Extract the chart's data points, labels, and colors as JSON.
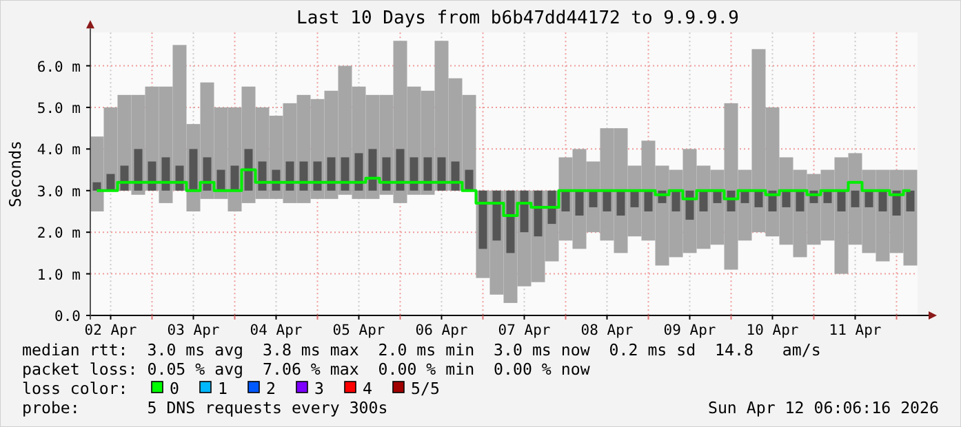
{
  "chart_data": {
    "type": "bar",
    "title": "Last 10 Days from b6b47dd44172 to 9.9.9.9",
    "ylabel": "Seconds",
    "x": [
      "2026-04-02T08:00",
      "2026-04-02T12:00",
      "2026-04-02T16:00",
      "2026-04-02T20:00",
      "2026-04-03T00:00",
      "2026-04-03T04:00",
      "2026-04-03T08:00",
      "2026-04-03T12:00",
      "2026-04-03T16:00",
      "2026-04-03T20:00",
      "2026-04-04T00:00",
      "2026-04-04T04:00",
      "2026-04-04T08:00",
      "2026-04-04T12:00",
      "2026-04-04T16:00",
      "2026-04-04T20:00",
      "2026-04-05T00:00",
      "2026-04-05T04:00",
      "2026-04-05T08:00",
      "2026-04-05T12:00",
      "2026-04-05T16:00",
      "2026-04-05T20:00",
      "2026-04-06T00:00",
      "2026-04-06T04:00",
      "2026-04-06T08:00",
      "2026-04-06T12:00",
      "2026-04-06T16:00",
      "2026-04-06T20:00",
      "2026-04-07T00:00",
      "2026-04-07T04:00",
      "2026-04-07T08:00",
      "2026-04-07T12:00",
      "2026-04-07T16:00",
      "2026-04-07T20:00",
      "2026-04-08T00:00",
      "2026-04-08T04:00",
      "2026-04-08T08:00",
      "2026-04-08T12:00",
      "2026-04-08T16:00",
      "2026-04-08T20:00",
      "2026-04-09T00:00",
      "2026-04-09T04:00",
      "2026-04-09T08:00",
      "2026-04-09T12:00",
      "2026-04-09T16:00",
      "2026-04-09T20:00",
      "2026-04-10T00:00",
      "2026-04-10T04:00",
      "2026-04-10T08:00",
      "2026-04-10T12:00",
      "2026-04-10T16:00",
      "2026-04-10T20:00",
      "2026-04-11T00:00",
      "2026-04-11T04:00",
      "2026-04-11T08:00",
      "2026-04-11T12:00",
      "2026-04-11T16:00",
      "2026-04-11T20:00",
      "2026-04-12T00:00",
      "2026-04-12T04:00"
    ],
    "series": [
      {
        "color": "#a6a6a6",
        "base": [
          2.5,
          3.0,
          3.0,
          2.9,
          3.0,
          2.7,
          3.0,
          2.5,
          2.8,
          2.8,
          2.5,
          2.7,
          2.8,
          2.8,
          2.7,
          2.7,
          2.8,
          2.8,
          2.9,
          2.8,
          2.8,
          2.9,
          2.7,
          2.9,
          2.9,
          3.0,
          3.0,
          3.0,
          0.9,
          0.5,
          0.3,
          0.7,
          0.8,
          1.3,
          1.8,
          1.6,
          2.0,
          1.8,
          1.5,
          1.9,
          1.8,
          1.2,
          1.4,
          1.5,
          1.6,
          1.7,
          1.1,
          1.8,
          2.0,
          1.9,
          1.7,
          1.4,
          1.7,
          1.8,
          1.0,
          1.7,
          1.5,
          1.3,
          1.5,
          1.2
        ],
        "values": [
          1.8,
          2.0,
          2.3,
          2.4,
          2.5,
          2.8,
          3.5,
          2.1,
          2.8,
          2.2,
          2.5,
          2.8,
          2.2,
          2.0,
          2.4,
          2.6,
          2.4,
          2.6,
          3.1,
          2.7,
          2.5,
          2.4,
          3.9,
          2.6,
          2.5,
          3.6,
          2.7,
          2.3,
          2.1,
          2.5,
          2.7,
          2.3,
          2.2,
          1.7,
          2.0,
          2.4,
          1.7,
          2.7,
          3.0,
          1.7,
          2.4,
          2.4,
          2.1,
          2.5,
          2.0,
          1.8,
          4.0,
          1.7,
          4.4,
          3.1,
          2.1,
          2.1,
          1.7,
          1.7,
          2.8,
          2.2,
          2.0,
          2.2,
          2.0,
          2.3
        ]
      },
      {
        "color": "#555555",
        "base": [
          3.0,
          3.0,
          3.0,
          3.0,
          3.0,
          3.0,
          3.0,
          3.0,
          3.0,
          3.0,
          3.0,
          3.0,
          3.0,
          3.0,
          3.0,
          3.0,
          3.0,
          3.0,
          3.0,
          3.0,
          3.0,
          3.0,
          3.0,
          3.0,
          3.0,
          3.0,
          3.0,
          3.0,
          1.6,
          1.8,
          1.5,
          2.0,
          1.9,
          2.2,
          2.5,
          2.4,
          2.6,
          2.5,
          2.4,
          2.6,
          2.5,
          2.7,
          2.5,
          2.3,
          2.5,
          2.7,
          2.5,
          2.7,
          2.6,
          2.5,
          2.6,
          2.5,
          2.7,
          2.7,
          2.5,
          2.6,
          2.6,
          2.5,
          2.4,
          2.5
        ],
        "values": [
          0.2,
          0.4,
          0.6,
          1.0,
          0.7,
          0.8,
          0.6,
          1.0,
          0.8,
          0.5,
          0.6,
          1.0,
          0.7,
          0.5,
          0.7,
          0.7,
          0.7,
          0.8,
          0.8,
          0.9,
          1.0,
          0.8,
          1.0,
          0.8,
          0.8,
          0.8,
          0.7,
          0.5,
          1.4,
          1.2,
          1.5,
          1.0,
          1.1,
          0.8,
          0.5,
          0.6,
          0.4,
          0.5,
          0.6,
          0.4,
          0.5,
          0.3,
          0.5,
          0.7,
          0.5,
          0.3,
          0.5,
          0.3,
          0.4,
          0.5,
          0.4,
          0.5,
          0.3,
          0.3,
          0.5,
          0.4,
          0.4,
          0.5,
          0.6,
          0.5
        ]
      },
      {
        "type": "step",
        "color": "#00ee00",
        "values": [
          3.0,
          3.0,
          3.2,
          3.2,
          3.2,
          3.2,
          3.2,
          3.0,
          3.2,
          3.0,
          3.0,
          3.5,
          3.2,
          3.2,
          3.2,
          3.2,
          3.2,
          3.2,
          3.2,
          3.2,
          3.3,
          3.2,
          3.2,
          3.2,
          3.2,
          3.2,
          3.2,
          3.0,
          2.7,
          2.7,
          2.4,
          2.7,
          2.6,
          2.6,
          3.0,
          3.0,
          3.0,
          3.0,
          3.0,
          3.0,
          3.0,
          2.9,
          3.0,
          2.8,
          3.0,
          3.0,
          2.8,
          3.0,
          3.0,
          2.9,
          3.0,
          3.0,
          2.9,
          3.0,
          3.0,
          3.2,
          3.0,
          3.0,
          2.9,
          3.0
        ]
      }
    ],
    "xlim": [
      "2026-04-02T06:06",
      "2026-04-12T06:06"
    ],
    "xticks": [
      {
        "value": "2026-04-02T12:00",
        "label": "02 Apr"
      },
      {
        "value": "2026-04-03T00:00",
        "label": null
      },
      {
        "value": "2026-04-03T12:00",
        "label": "03 Apr"
      },
      {
        "value": "2026-04-04T00:00",
        "label": null
      },
      {
        "value": "2026-04-04T12:00",
        "label": "04 Apr"
      },
      {
        "value": "2026-04-05T00:00",
        "label": null
      },
      {
        "value": "2026-04-05T12:00",
        "label": "05 Apr"
      },
      {
        "value": "2026-04-06T00:00",
        "label": null
      },
      {
        "value": "2026-04-06T12:00",
        "label": "06 Apr"
      },
      {
        "value": "2026-04-07T00:00",
        "label": null
      },
      {
        "value": "2026-04-07T12:00",
        "label": "07 Apr"
      },
      {
        "value": "2026-04-08T00:00",
        "label": null
      },
      {
        "value": "2026-04-08T12:00",
        "label": "08 Apr"
      },
      {
        "value": "2026-04-09T00:00",
        "label": null
      },
      {
        "value": "2026-04-09T12:00",
        "label": "09 Apr"
      },
      {
        "value": "2026-04-10T00:00",
        "label": null
      },
      {
        "value": "2026-04-10T12:00",
        "label": "10 Apr"
      },
      {
        "value": "2026-04-11T00:00",
        "label": null
      },
      {
        "value": "2026-04-11T12:00",
        "label": "11 Apr"
      },
      {
        "value": "2026-04-12T00:00",
        "label": null
      }
    ],
    "ylim": [
      0,
      6.8
    ],
    "yticks": [
      {
        "value": 0,
        "label": "0.0"
      },
      {
        "value": 1,
        "label": "1.0 m"
      },
      {
        "value": 2,
        "label": "2.0 m"
      },
      {
        "value": 3,
        "label": "3.0 m"
      },
      {
        "value": 4,
        "label": "4.0 m"
      },
      {
        "value": 5,
        "label": "5.0 m"
      },
      {
        "value": 6,
        "label": "6.0 m"
      }
    ],
    "grid": true,
    "annotations": [
      "median rtt:  3.0 ms avg  3.8 ms max  2.0 ms min  3.0 ms now  0.2 ms sd  14.8   am/s",
      "packet loss: 0.05 % avg  7.06 % max  0.00 % min  0.00 % now",
      "loss color:",
      "0",
      "1",
      "2",
      "3",
      "4",
      "5/5",
      "probe:       5 DNS requests every 300s",
      "Sun Apr 12 06:06:16 2026"
    ]
  }
}
